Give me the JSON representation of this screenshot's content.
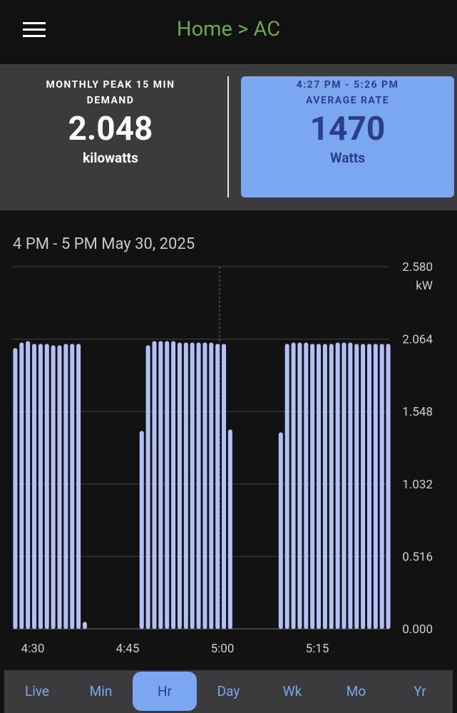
{
  "header": {
    "title": "Home > AC"
  },
  "stats": {
    "left_label": "MONTHLY PEAK 15 MIN DEMAND",
    "left_value": "2.048",
    "left_unit": "kilowatts",
    "right_range": "4:27 PM - 5:26 PM",
    "right_label": "AVERAGE RATE",
    "right_value": "1470",
    "right_unit": "Watts"
  },
  "chart_data": {
    "type": "bar",
    "title": "4 PM - 5 PM May 30, 2025",
    "y_unit": "kW",
    "color": "#b3bff7",
    "grid": true,
    "categories": [
      null,
      null,
      null,
      "4:30",
      null,
      null,
      null,
      null,
      null,
      null,
      null,
      null,
      null,
      null,
      null,
      null,
      null,
      null,
      "4:45",
      null,
      null,
      null,
      null,
      null,
      null,
      null,
      null,
      null,
      null,
      null,
      null,
      null,
      null,
      "5:00",
      null,
      null,
      null,
      null,
      null,
      null,
      null,
      null,
      null,
      null,
      null,
      null,
      null,
      null,
      "5:15",
      null,
      null,
      null,
      null,
      null,
      null,
      null,
      null,
      null,
      null,
      null
    ],
    "values": [
      2.0,
      2.04,
      2.05,
      2.03,
      2.03,
      2.03,
      2.02,
      2.02,
      2.03,
      2.03,
      2.03,
      0.05,
      0,
      0,
      0,
      0,
      0,
      0,
      0,
      0,
      1.41,
      2.02,
      2.05,
      2.05,
      2.05,
      2.05,
      2.04,
      2.04,
      2.04,
      2.04,
      2.04,
      2.04,
      2.03,
      2.03,
      1.42,
      0,
      0,
      0,
      0,
      0,
      0,
      0,
      1.4,
      2.03,
      2.04,
      2.04,
      2.04,
      2.03,
      2.03,
      2.03,
      2.03,
      2.04,
      2.04,
      2.04,
      2.03,
      2.03,
      2.03,
      2.03,
      2.03,
      2.03
    ],
    "ylim": [
      0,
      2.58
    ],
    "yticks": [
      {
        "value": 0,
        "label": "0.000"
      },
      {
        "value": 0.516,
        "label": "0.516"
      },
      {
        "value": 1.032,
        "label": "1.032"
      },
      {
        "value": 1.548,
        "label": "1.548"
      },
      {
        "value": 2.064,
        "label": "2.064"
      },
      {
        "value": 2.58,
        "label": "2.580"
      }
    ]
  },
  "tabs": [
    "Live",
    "Min",
    "Hr",
    "Day",
    "Wk",
    "Mo",
    "Yr"
  ]
}
